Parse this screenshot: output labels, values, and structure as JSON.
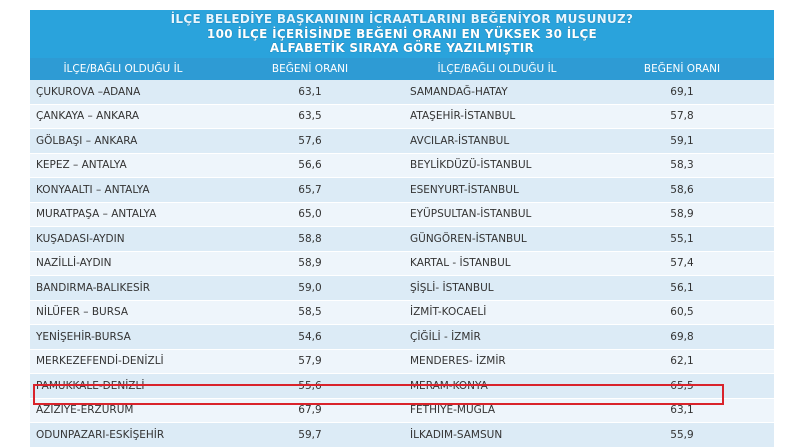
{
  "title": {
    "line1": "İLÇE BELEDİYE BAŞKANININ İCRAATLARINI BEĞENİYOR MUSUNUZ?",
    "line2": "100 İLÇE İÇERİSİNDE BEĞENİ ORANI EN YÜKSEK 30 İLÇE",
    "line3": "ALFABETİK SIRAYA GÖRE YAZILMIŞTIR"
  },
  "headers": {
    "district1": "İLÇE/BAĞLI OLDUĞU İL",
    "rating1": "BEĞENİ ORANI",
    "district2": "İLÇE/BAĞLI OLDUĞU İL",
    "rating2": "BEĞENİ ORANI"
  },
  "rows": [
    {
      "d1": "ÇUKUROVA –ADANA",
      "r1": "63,1",
      "d2": "SAMANDAĞ-HATAY",
      "r2": "69,1"
    },
    {
      "d1": "ÇANKAYA – ANKARA",
      "r1": "63,5",
      "d2": "ATAŞEHİR-İSTANBUL",
      "r2": "57,8"
    },
    {
      "d1": "GÖLBAŞI – ANKARA",
      "r1": "57,6",
      "d2": "AVCILAR-İSTANBUL",
      "r2": "59,1"
    },
    {
      "d1": "KEPEZ – ANTALYA",
      "r1": "56,6",
      "d2": "BEYLİKDÜZÜ-İSTANBUL",
      "r2": "58,3"
    },
    {
      "d1": "KONYAALTI – ANTALYA",
      "r1": "65,7",
      "d2": "ESENYURT-İSTANBUL",
      "r2": "58,6"
    },
    {
      "d1": "MURATPAŞA – ANTALYA",
      "r1": "65,0",
      "d2": "EYÜPSULTAN-İSTANBUL",
      "r2": "58,9"
    },
    {
      "d1": "KUŞADASI-AYDIN",
      "r1": "58,8",
      "d2": "GÜNGÖREN-İSTANBUL",
      "r2": "55,1"
    },
    {
      "d1": "NAZİLLİ-AYDIN",
      "r1": "58,9",
      "d2": "KARTAL - İSTANBUL",
      "r2": "57,4"
    },
    {
      "d1": "BANDIRMA-BALIKESİR",
      "r1": "59,0",
      "d2": "ŞİŞLİ- İSTANBUL",
      "r2": "56,1"
    },
    {
      "d1": "NİLÜFER – BURSA",
      "r1": "58,5",
      "d2": "İZMİT-KOCAELİ",
      "r2": "60,5"
    },
    {
      "d1": "YENİŞEHİR-BURSA",
      "r1": "54,6",
      "d2": "ÇİĞİLİ - İZMİR",
      "r2": "69,8"
    },
    {
      "d1": "MERKEZEFENDİ-DENİZLİ",
      "r1": "57,9",
      "d2": "MENDERES- İZMİR",
      "r2": "62,1"
    },
    {
      "d1": "PAMUKKALE-DENİZLİ",
      "r1": "55,6",
      "d2": "MERAM-KONYA",
      "r2": "65,5"
    },
    {
      "d1": "AZİZİYE-ERZURUM",
      "r1": "67,9",
      "d2": "FETHİYE-MUĞLA",
      "r2": "63,1"
    },
    {
      "d1": "ODUNPAZARI-ESKİŞEHİR",
      "r1": "59,7",
      "d2": "İLKADIM-SAMSUN",
      "r2": "55,9"
    }
  ],
  "highlighted_row": "AZİZİYE-ERZURUM",
  "colors": {
    "title_bg": "#2aa3dc",
    "header_bg": "#2e9bd4",
    "row_odd": "#dcebf6",
    "row_even": "#eef5fb",
    "highlight_border": "#d9232b"
  }
}
